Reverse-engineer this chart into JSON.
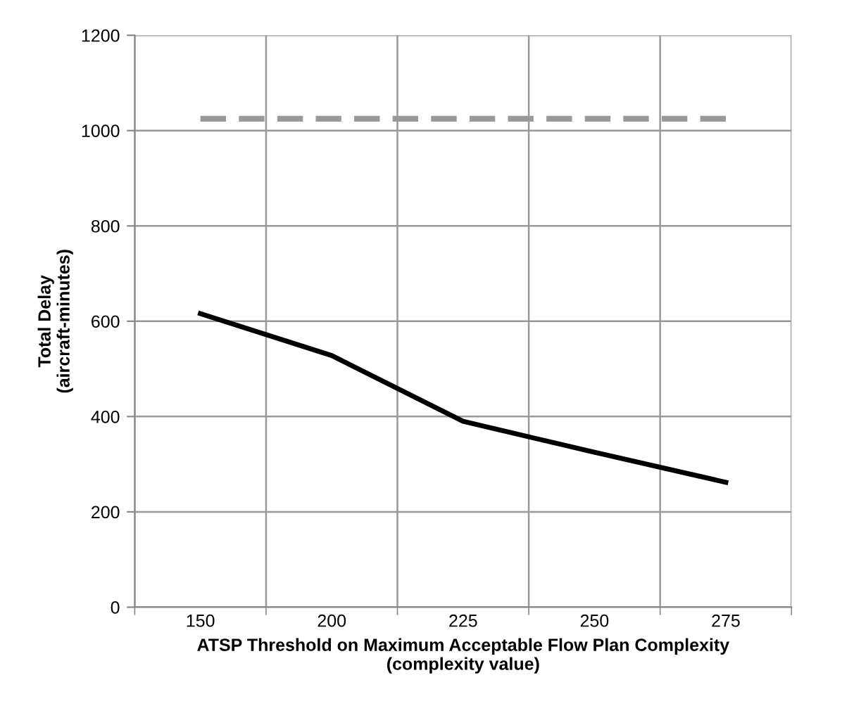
{
  "chart_data": {
    "type": "line",
    "xlabel": "ATSP Threshold on Maximum Acceptable Flow Plan Complexity\n(complexity value)",
    "ylabel": "Total Delay\n(aircraft-minutes)",
    "categories": [
      "150",
      "200",
      "225",
      "250",
      "275"
    ],
    "series": [
      {
        "color": "#000000",
        "values": [
          616,
          528,
          390,
          325,
          262
        ],
        "line_style": "solid"
      },
      {
        "color": "#999999",
        "values": [
          1025,
          1025,
          1025,
          1025,
          1025
        ],
        "line_style": "dashed"
      }
    ],
    "ylim": [
      0,
      1200
    ],
    "yticks": [
      0,
      200,
      400,
      600,
      800,
      1000,
      1200
    ],
    "grid": true,
    "marker": "none"
  }
}
